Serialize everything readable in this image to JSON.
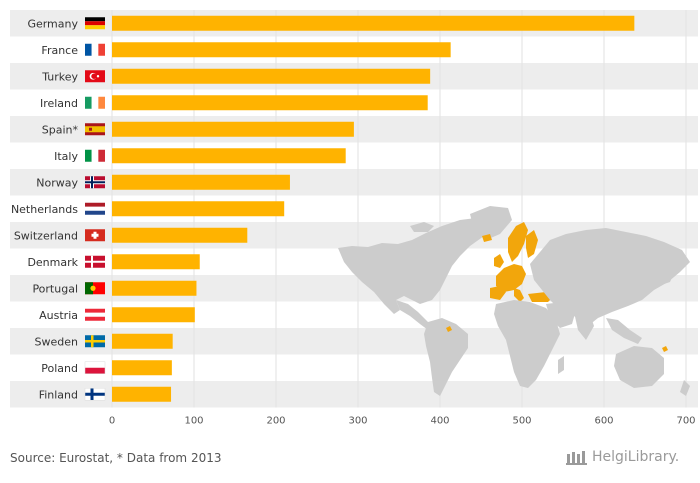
{
  "chart_data": {
    "type": "bar",
    "orientation": "horizontal",
    "categories": [
      "Germany",
      "France",
      "Turkey",
      "Ireland",
      "Spain*",
      "Italy",
      "Norway",
      "Netherlands",
      "Switzerland",
      "Denmark",
      "Portugal",
      "Austria",
      "Sweden",
      "Poland",
      "Finland"
    ],
    "values": [
      637,
      413,
      388,
      385,
      295,
      285,
      217,
      210,
      165,
      107,
      103,
      101,
      74,
      73,
      72
    ],
    "xlim": [
      0,
      700
    ],
    "xticks": [
      0,
      100,
      200,
      300,
      400,
      500,
      600,
      700
    ],
    "xlabel": "",
    "ylabel": "",
    "bar_color": "#FFB300",
    "stripe_color": "#EDEDED",
    "grid": true
  },
  "colors": {
    "bar": "#FFB300",
    "map_land": "#CCCCCC",
    "map_highlight": "#F2A60C"
  },
  "footer": {
    "source": "Source: Eurostat, * Data from 2013",
    "brand": "HelgiLibrary."
  }
}
